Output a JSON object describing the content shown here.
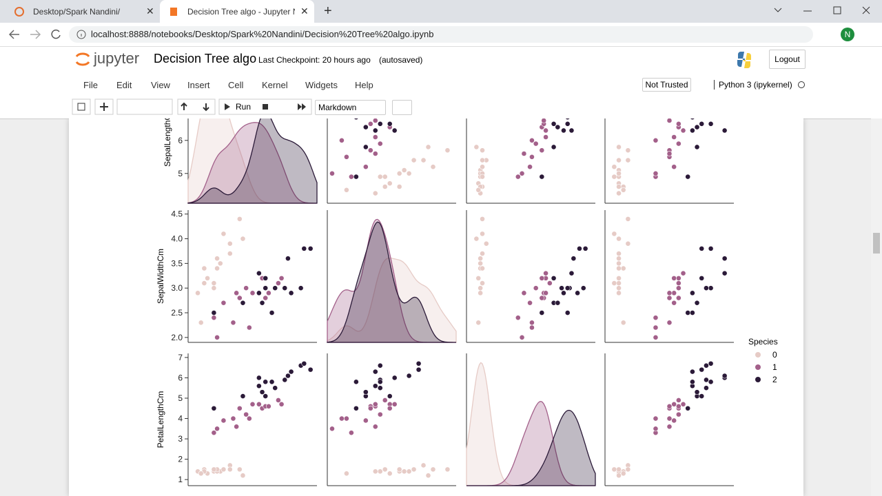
{
  "browser": {
    "tabs": [
      "Desktop/Spark Nandini/",
      "Decision Tree algo - Jupyter Note"
    ],
    "url": "localhost:8888/notebooks/Desktop/Spark%20Nandini/Decision%20Tree%20algo.ipynb",
    "profile": "N"
  },
  "notebook": {
    "logo": "jupyter",
    "title": "Decision Tree algo",
    "checkpoint": "Last Checkpoint: 20 hours ago",
    "autosaved": "(autosaved)",
    "logout": "Logout",
    "menu": [
      "File",
      "Edit",
      "View",
      "Insert",
      "Cell",
      "Kernel",
      "Widgets",
      "Help"
    ],
    "trust": "Not Trusted",
    "kernel": "Python 3 (ipykernel)",
    "run": "Run",
    "cell_type": "Markdown"
  },
  "chart_data": {
    "type": "pairplot",
    "legend_title": "Species",
    "axes": [
      {
        "label": "SepalLengthCm",
        "lim": [
          4.1,
          8.1
        ],
        "ticks": [
          5,
          6
        ]
      },
      {
        "label": "SepalWidthCm",
        "lim": [
          1.9,
          4.58
        ],
        "ticks": [
          {
            "value": 2,
            "label": "2.0"
          },
          {
            "value": 2.5,
            "label": "2.5"
          },
          {
            "value": 3,
            "label": "3.0"
          },
          {
            "value": 3.5,
            "label": "3.5"
          },
          {
            "value": 4,
            "label": "4.0"
          },
          {
            "value": 4.5,
            "label": "4.5"
          }
        ]
      },
      {
        "label": "PetalLengthCm",
        "lim": [
          0.7,
          7.2
        ],
        "ticks": [
          1,
          2,
          3,
          4,
          5,
          6,
          7
        ]
      },
      {
        "lim": [
          -0.1,
          2.7
        ]
      }
    ],
    "series": [
      {
        "name": "0",
        "color": "#e6cbc6",
        "values": [
          [
            5.1,
            4.9,
            4.7,
            4.6,
            5.0,
            5.4,
            4.6,
            5.0,
            4.4,
            4.9,
            5.4,
            5.7,
            5.8,
            4.5,
            5.2
          ],
          [
            3.5,
            3.0,
            3.2,
            3.1,
            3.6,
            3.9,
            3.4,
            3.4,
            2.9,
            3.1,
            3.7,
            4.4,
            4.0,
            2.3,
            4.1
          ],
          [
            1.4,
            1.4,
            1.3,
            1.5,
            1.4,
            1.7,
            1.4,
            1.5,
            1.4,
            1.5,
            1.5,
            1.5,
            1.2,
            1.3,
            1.5
          ],
          [
            0.2,
            0.2,
            0.2,
            0.2,
            0.2,
            0.4,
            0.3,
            0.2,
            0.2,
            0.1,
            0.2,
            0.4,
            0.2,
            0.3,
            0.1
          ]
        ]
      },
      {
        "name": "1",
        "color": "#a3608a",
        "values": [
          [
            7.0,
            6.4,
            6.9,
            5.5,
            6.5,
            5.7,
            6.3,
            4.9,
            6.6,
            5.2,
            5.0,
            5.9,
            6.0,
            6.1,
            5.6
          ],
          [
            3.2,
            3.2,
            3.1,
            2.3,
            2.8,
            2.8,
            3.3,
            2.4,
            2.9,
            2.7,
            2.0,
            3.0,
            2.2,
            2.9,
            2.9
          ],
          [
            4.7,
            4.5,
            4.9,
            4.0,
            4.6,
            4.5,
            4.7,
            3.3,
            4.6,
            3.9,
            3.5,
            4.2,
            4.0,
            4.7,
            3.6
          ],
          [
            1.4,
            1.5,
            1.5,
            1.3,
            1.5,
            1.3,
            1.6,
            1.0,
            1.3,
            1.4,
            1.0,
            1.5,
            1.0,
            1.4,
            1.3
          ]
        ]
      },
      {
        "name": "2",
        "color": "#2b1a38",
        "values": [
          [
            6.3,
            5.8,
            7.1,
            6.3,
            6.5,
            7.6,
            4.9,
            7.3,
            6.7,
            7.2,
            6.5,
            6.4,
            6.8,
            7.7,
            7.9
          ],
          [
            3.3,
            2.7,
            3.0,
            2.9,
            3.0,
            3.0,
            2.5,
            2.9,
            2.5,
            3.6,
            3.2,
            2.7,
            3.0,
            3.8,
            3.8
          ],
          [
            6.0,
            5.1,
            5.9,
            5.6,
            5.8,
            6.6,
            4.5,
            6.3,
            5.8,
            6.1,
            5.1,
            5.3,
            5.5,
            6.7,
            6.4
          ],
          [
            2.5,
            1.9,
            2.1,
            1.8,
            2.2,
            2.1,
            1.7,
            1.8,
            1.8,
            2.5,
            2.0,
            1.9,
            2.1,
            2.2,
            2.0
          ]
        ]
      }
    ]
  }
}
